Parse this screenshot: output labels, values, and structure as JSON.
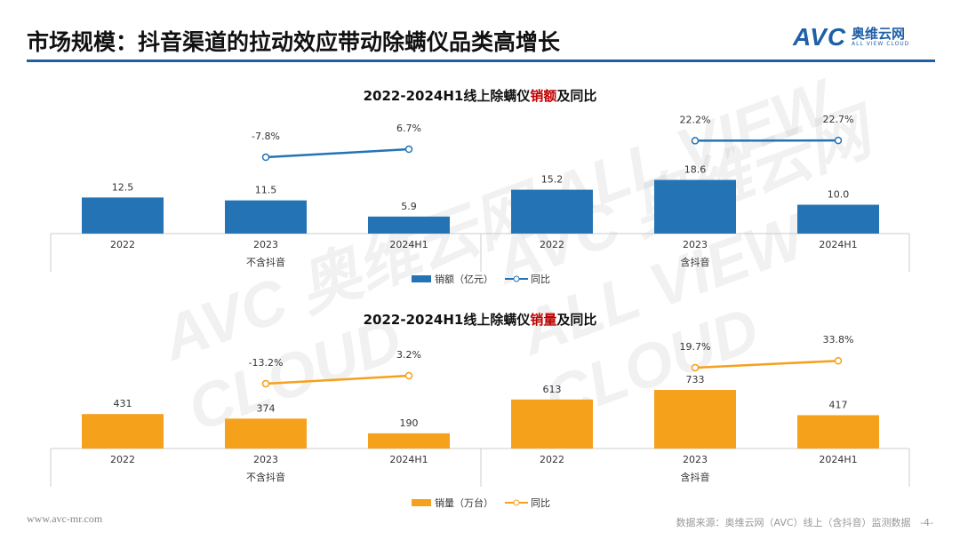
{
  "header": {
    "title": "市场规模：抖音渠道的拉动效应带动除螨仪品类高增长",
    "logo_text": "AVC",
    "logo_cn": "奥维云网",
    "logo_en": "ALL VIEW CLOUD"
  },
  "footer": {
    "url": "www.avc-mr.com",
    "source": "数据来源：奥维云网（AVC）线上（含抖音）监测数据",
    "page": "-4-"
  },
  "watermark": "AVC 奥维云网 ALL VIEW CLOUD",
  "chart_data": [
    {
      "type": "bar+line",
      "title_pre": "2022-2024H1线上除螨仪",
      "title_hl": "销额",
      "title_post": "及同比",
      "categories": [
        "2022",
        "2023",
        "2024H1",
        "2022",
        "2023",
        "2024H1"
      ],
      "groups": [
        "不含抖音",
        "含抖音"
      ],
      "series": [
        {
          "name": "销额（亿元）",
          "values": [
            12.5,
            11.5,
            5.9,
            15.2,
            18.6,
            10.0
          ],
          "labels": [
            "12.5",
            "11.5",
            "5.9",
            "15.2",
            "18.6",
            "10.0"
          ]
        },
        {
          "name": "同比",
          "values": [
            null,
            -7.8,
            6.7,
            null,
            22.2,
            22.7
          ],
          "labels": [
            "",
            "-7.8%",
            "6.7%",
            "",
            "22.2%",
            "22.7%"
          ]
        }
      ],
      "bar_color": "#2474b5",
      "line_color": "#2474b5",
      "hl_color": "#c00000"
    },
    {
      "type": "bar+line",
      "title_pre": "2022-2024H1线上除螨仪",
      "title_hl": "销量",
      "title_post": "及同比",
      "categories": [
        "2022",
        "2023",
        "2024H1",
        "2022",
        "2023",
        "2024H1"
      ],
      "groups": [
        "不含抖音",
        "含抖音"
      ],
      "series": [
        {
          "name": "销量（万台）",
          "values": [
            431,
            374,
            190,
            613,
            733,
            417
          ],
          "labels": [
            "431",
            "374",
            "190",
            "613",
            "733",
            "417"
          ]
        },
        {
          "name": "同比",
          "values": [
            null,
            -13.2,
            3.2,
            null,
            19.7,
            33.8
          ],
          "labels": [
            "",
            "-13.2%",
            "3.2%",
            "",
            "19.7%",
            "33.8%"
          ]
        }
      ],
      "bar_color": "#f5a11c",
      "line_color": "#f5a11c",
      "hl_color": "#c00000"
    }
  ]
}
